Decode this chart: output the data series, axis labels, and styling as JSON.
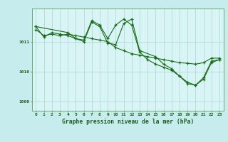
{
  "title": "Graphe pression niveau de la mer (hPa)",
  "background_color": "#c6ecee",
  "plot_bg_color": "#d8f4f4",
  "line_color": "#1a6b1a",
  "grid_color": "#aad4d6",
  "text_color": "#1a5c1a",
  "border_color": "#6aaa6a",
  "ylim": [
    1008.7,
    1012.1
  ],
  "yticks": [
    1009,
    1010,
    1011
  ],
  "xlim": [
    -0.5,
    23.5
  ],
  "xticks": [
    0,
    1,
    2,
    3,
    4,
    5,
    6,
    7,
    8,
    9,
    10,
    11,
    12,
    13,
    14,
    15,
    16,
    17,
    18,
    19,
    20,
    21,
    22,
    23
  ],
  "series": [
    {
      "x": [
        0,
        1,
        2,
        3,
        4,
        5,
        6,
        7,
        8,
        9,
        10,
        11,
        12,
        13,
        14,
        15,
        16,
        17,
        18,
        19,
        20,
        21,
        22,
        23
      ],
      "y": [
        1011.4,
        1011.2,
        1011.25,
        1011.2,
        1011.25,
        1011.2,
        1011.15,
        1011.1,
        1011.05,
        1011.0,
        1010.8,
        1010.7,
        1010.6,
        1010.55,
        1010.5,
        1010.45,
        1010.4,
        1010.35,
        1010.3,
        1010.28,
        1010.25,
        1010.3,
        1010.45,
        1010.45
      ]
    },
    {
      "x": [
        0,
        1,
        2,
        3,
        4,
        5,
        6,
        7,
        8,
        9,
        10,
        11,
        12,
        13,
        14,
        15,
        16,
        17,
        18,
        19,
        20,
        21,
        22,
        23
      ],
      "y": [
        1011.5,
        1011.15,
        1011.3,
        1011.25,
        1011.2,
        1011.1,
        1011.05,
        1011.7,
        1011.55,
        1011.1,
        1011.55,
        1011.75,
        1011.55,
        1010.65,
        1010.4,
        1010.25,
        1010.15,
        1010.05,
        1009.85,
        1009.6,
        1009.55,
        1009.75,
        1010.3,
        1010.4
      ]
    },
    {
      "x": [
        0,
        4,
        5,
        6,
        7,
        8,
        9,
        10,
        11,
        12,
        13,
        15,
        16,
        17,
        18,
        19,
        20,
        21,
        22,
        23
      ],
      "y": [
        1011.5,
        1011.3,
        1011.1,
        1011.0,
        1011.65,
        1011.5,
        1010.95,
        1010.9,
        1011.6,
        1011.75,
        1010.7,
        1010.5,
        1010.25,
        1010.1,
        1009.85,
        1009.65,
        1009.55,
        1009.8,
        1010.35,
        1010.4
      ]
    }
  ],
  "figsize": [
    3.2,
    2.0
  ],
  "dpi": 100
}
